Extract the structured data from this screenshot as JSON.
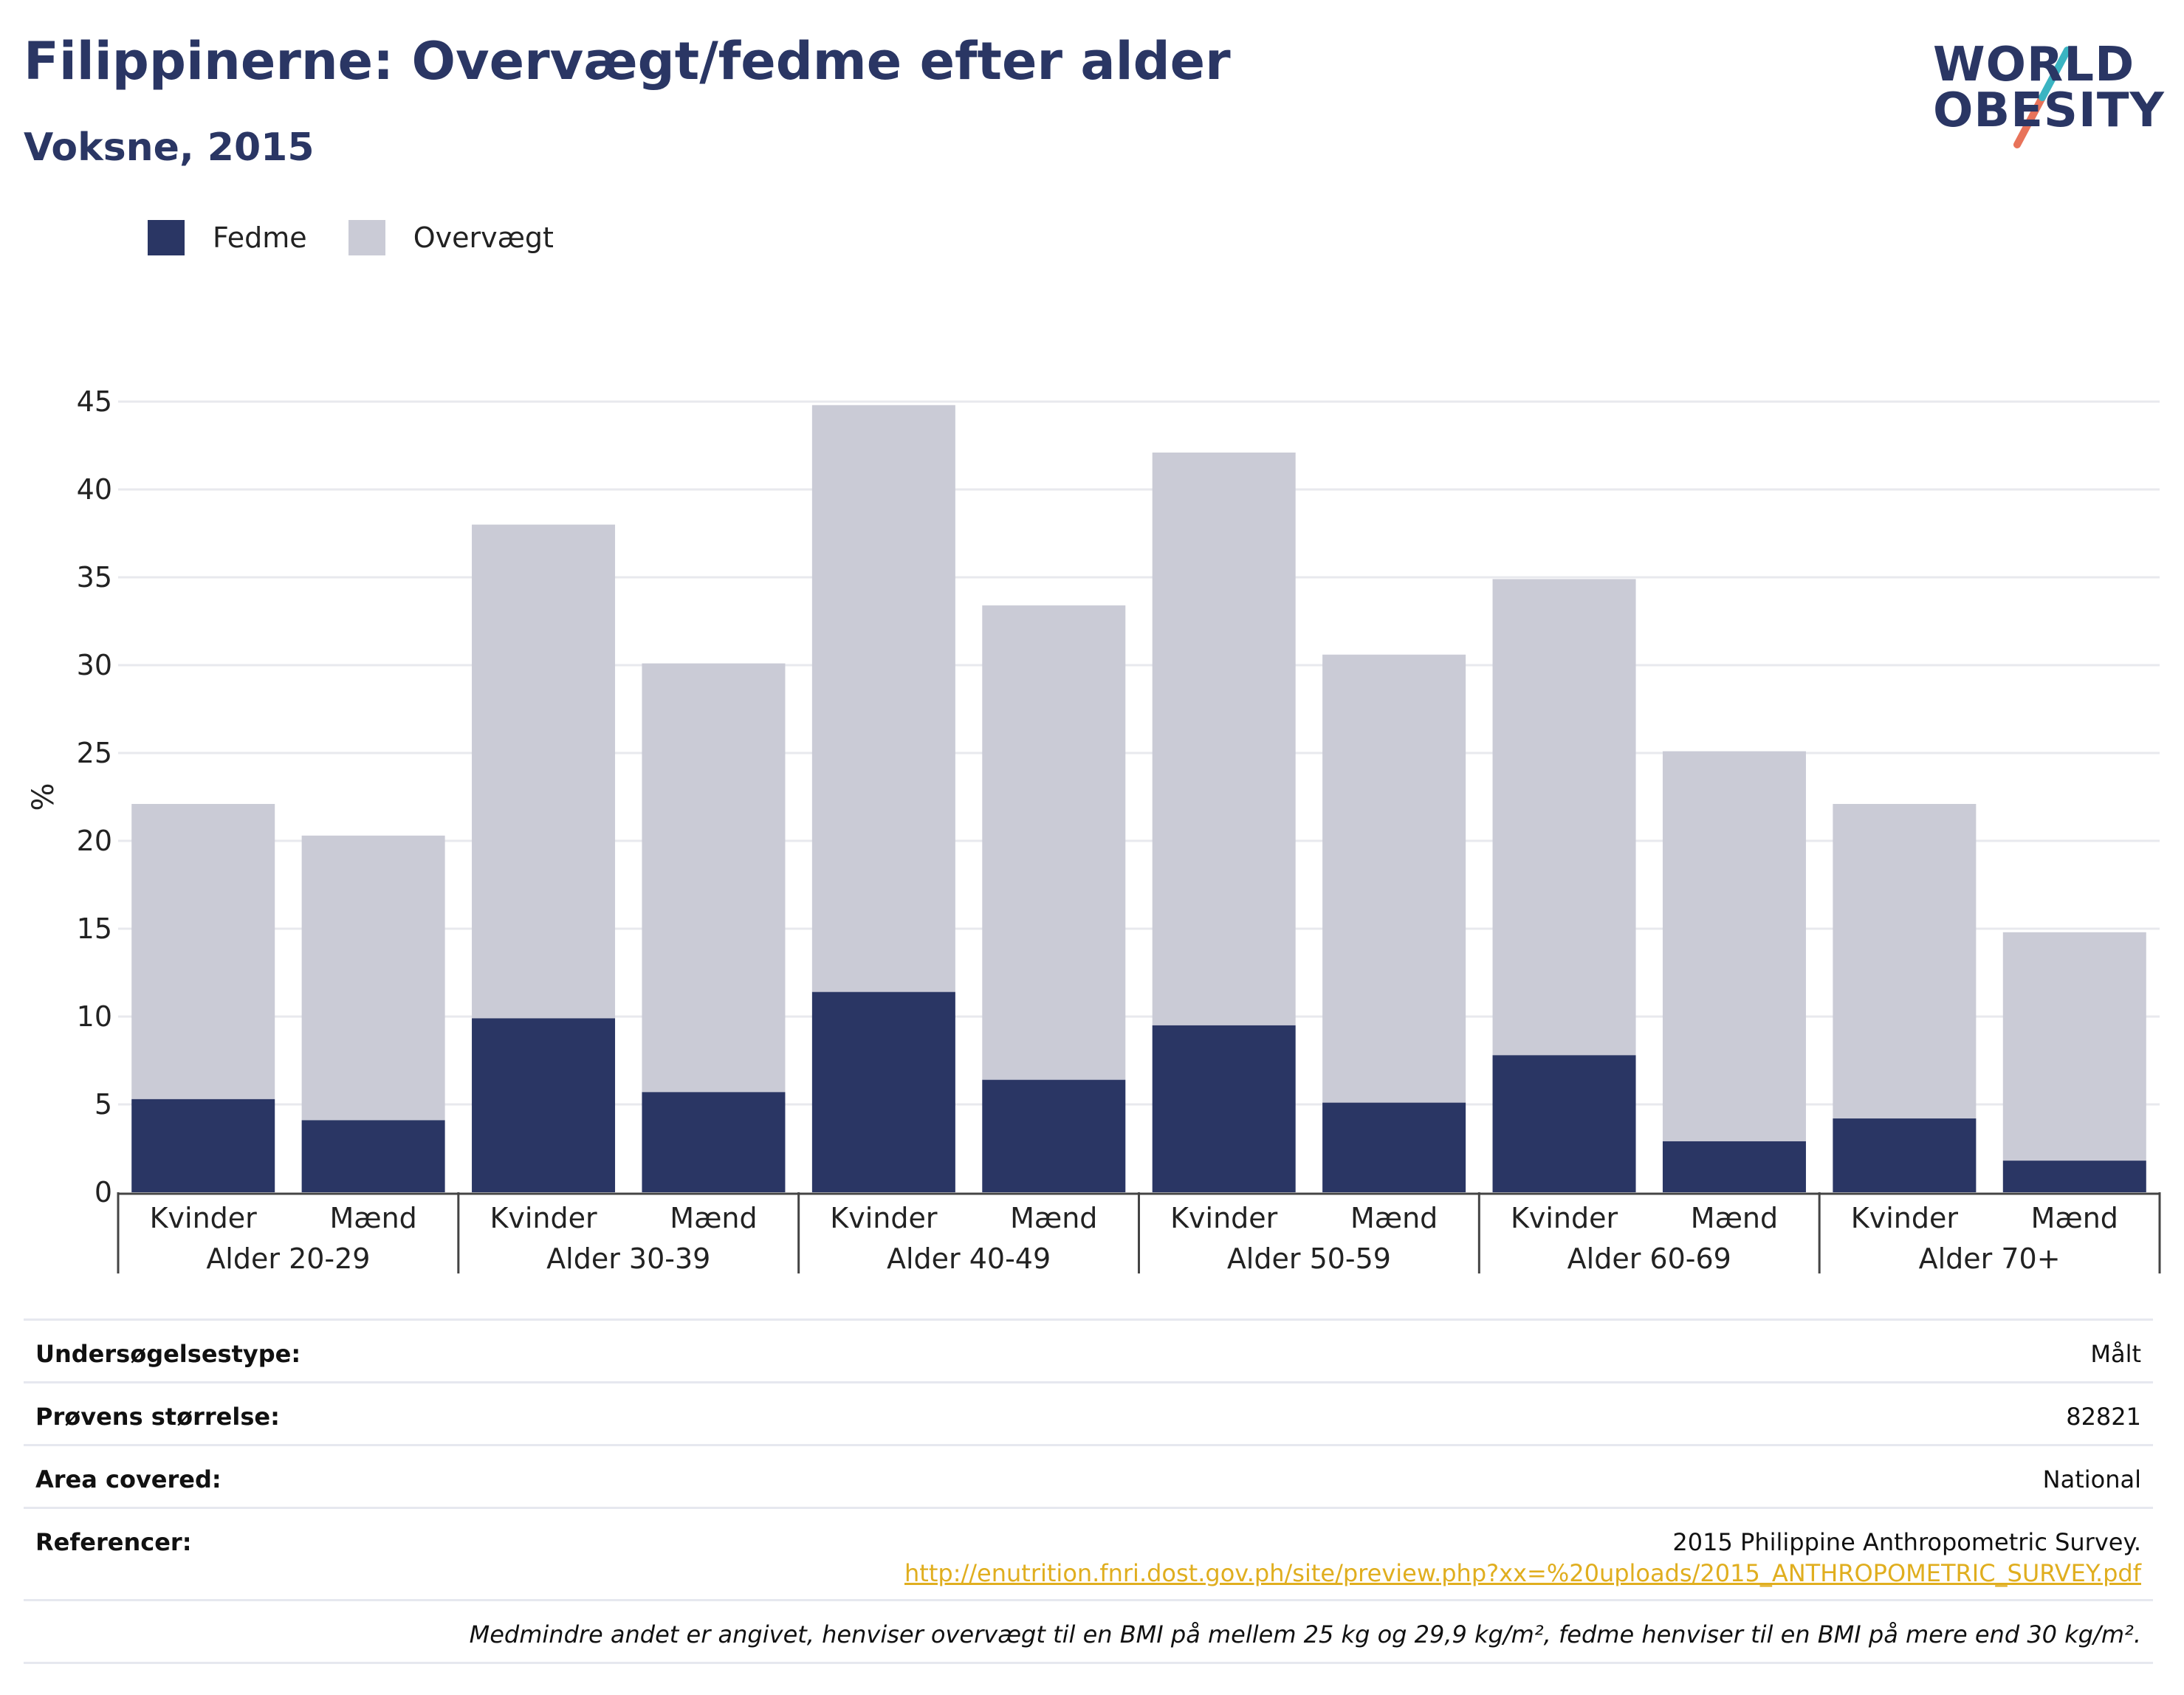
{
  "title": "Filippinerne: Overvægt/fedme efter alder",
  "subtitle": "Voksne, 2015",
  "logo": {
    "line1": "WORLD",
    "line2": "OBESITY"
  },
  "colors": {
    "fedme": "#2a3664",
    "overvaegt": "#cacbd6",
    "accent_teal": "#3ab4c2",
    "accent_coral": "#e8735a",
    "link": "#e0ae1f"
  },
  "legend": [
    {
      "label": "Fedme",
      "color": "#2a3664"
    },
    {
      "label": "Overvægt",
      "color": "#cacbd6"
    }
  ],
  "chart_data": {
    "type": "bar",
    "stacked": true,
    "ylabel": "%",
    "ylim": [
      0,
      45
    ],
    "yticks": [
      0,
      5,
      10,
      15,
      20,
      25,
      30,
      35,
      40,
      45
    ],
    "grid": true,
    "groups": [
      "Alder 20-29",
      "Alder 30-39",
      "Alder 40-49",
      "Alder 50-59",
      "Alder 60-69",
      "Alder 70+"
    ],
    "categories": [
      "Kvinder",
      "Mænd",
      "Kvinder",
      "Mænd",
      "Kvinder",
      "Mænd",
      "Kvinder",
      "Mænd",
      "Kvinder",
      "Mænd",
      "Kvinder",
      "Mænd"
    ],
    "series": [
      {
        "name": "Fedme",
        "values": [
          5.3,
          4.1,
          9.9,
          5.7,
          11.4,
          6.4,
          9.5,
          5.1,
          7.8,
          2.9,
          4.2,
          1.8
        ]
      },
      {
        "name": "Overvægt",
        "values": [
          16.8,
          16.2,
          28.1,
          24.4,
          33.4,
          27.0,
          32.6,
          25.5,
          27.1,
          22.2,
          17.9,
          13.0
        ]
      }
    ],
    "totals": [
      22.1,
      20.3,
      38.0,
      30.1,
      44.8,
      33.4,
      42.1,
      30.6,
      34.9,
      25.1,
      22.1,
      14.8
    ]
  },
  "info": {
    "survey_type_label": "Undersøgelsestype:",
    "survey_type_value": "Målt",
    "sample_size_label": "Prøvens størrelse:",
    "sample_size_value": "82821",
    "area_label": "Area covered:",
    "area_value": "National",
    "references_label": "Referencer:",
    "references_text": "2015 Philippine Anthropometric Survey.",
    "references_url": "http://enutrition.fnri.dost.gov.ph/site/preview.php?xx=%20uploads/2015_ANTHROPOMETRIC_SURVEY.pdf",
    "note": "Medmindre andet er angivet, henviser overvægt til en BMI på mellem 25 kg og 29,9 kg/m², fedme henviser til en BMI på mere end 30 kg/m²."
  }
}
